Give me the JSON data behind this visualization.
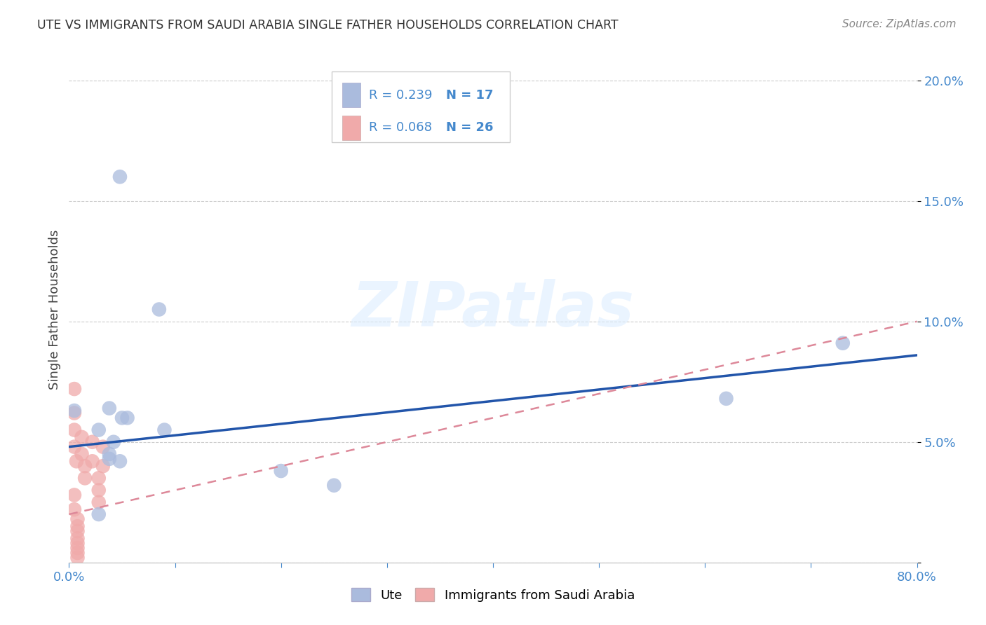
{
  "title": "UTE VS IMMIGRANTS FROM SAUDI ARABIA SINGLE FATHER HOUSEHOLDS CORRELATION CHART",
  "source": "Source: ZipAtlas.com",
  "ylabel": "Single Father Households",
  "xlim": [
    0.0,
    0.8
  ],
  "ylim": [
    0.0,
    0.21
  ],
  "xticks": [
    0.0,
    0.1,
    0.2,
    0.3,
    0.4,
    0.5,
    0.6,
    0.7,
    0.8
  ],
  "xtick_labels": [
    "0.0%",
    "",
    "",
    "",
    "",
    "",
    "",
    "",
    "80.0%"
  ],
  "yticks": [
    0.0,
    0.05,
    0.1,
    0.15,
    0.2
  ],
  "ytick_labels": [
    "",
    "5.0%",
    "10.0%",
    "15.0%",
    "20.0%"
  ],
  "background_color": "#ffffff",
  "grid_color": "#cccccc",
  "blue_color": "#aabbdd",
  "pink_color": "#f0aaaa",
  "line_blue": "#2255aa",
  "line_pink": "#dd8899",
  "tick_color": "#4488cc",
  "watermark_text": "ZIPatlas",
  "legend_R1": "R = 0.239",
  "legend_N1": "N = 17",
  "legend_R2": "R = 0.068",
  "legend_N2": "N = 26",
  "ute_x": [
    0.048,
    0.085,
    0.038,
    0.05,
    0.028,
    0.042,
    0.038,
    0.038,
    0.048,
    0.055,
    0.09,
    0.2,
    0.25,
    0.73,
    0.62,
    0.005,
    0.028
  ],
  "ute_y": [
    0.16,
    0.105,
    0.064,
    0.06,
    0.055,
    0.05,
    0.045,
    0.043,
    0.042,
    0.06,
    0.055,
    0.038,
    0.032,
    0.091,
    0.068,
    0.063,
    0.02
  ],
  "saudi_x": [
    0.005,
    0.005,
    0.005,
    0.005,
    0.007,
    0.012,
    0.012,
    0.015,
    0.015,
    0.022,
    0.022,
    0.032,
    0.032,
    0.028,
    0.028,
    0.028,
    0.008,
    0.008,
    0.008,
    0.008,
    0.008,
    0.008,
    0.008,
    0.008,
    0.005,
    0.005
  ],
  "saudi_y": [
    0.072,
    0.062,
    0.055,
    0.048,
    0.042,
    0.052,
    0.045,
    0.04,
    0.035,
    0.05,
    0.042,
    0.048,
    0.04,
    0.035,
    0.03,
    0.025,
    0.018,
    0.015,
    0.013,
    0.01,
    0.008,
    0.006,
    0.004,
    0.002,
    0.028,
    0.022
  ],
  "blue_line_x0": 0.0,
  "blue_line_y0": 0.048,
  "blue_line_x1": 0.8,
  "blue_line_y1": 0.086,
  "pink_line_x0": 0.0,
  "pink_line_y0": 0.02,
  "pink_line_x1": 0.8,
  "pink_line_y1": 0.1
}
